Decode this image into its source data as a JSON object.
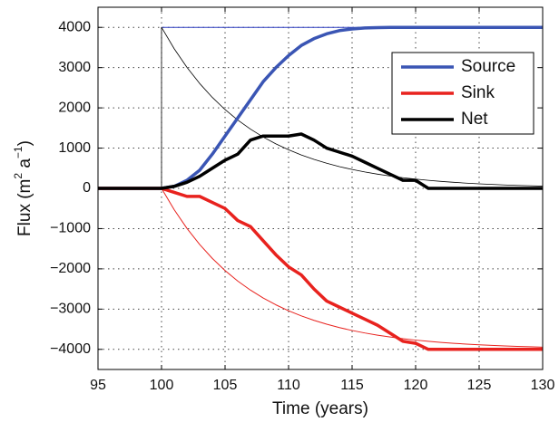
{
  "chart_data": {
    "type": "line",
    "xlabel": "Time (years)",
    "ylabel": [
      "Flux (m",
      "2",
      " a",
      "−1",
      ")"
    ],
    "xlim": [
      95,
      130
    ],
    "ylim": [
      -4500,
      4500
    ],
    "xticks": [
      95,
      100,
      105,
      110,
      115,
      120,
      125,
      130
    ],
    "yticks": [
      {
        "value": -4000,
        "label": "−4000"
      },
      {
        "value": -3000,
        "label": "−3000"
      },
      {
        "value": -2000,
        "label": "−2000"
      },
      {
        "value": -1000,
        "label": "−1000"
      },
      0,
      1000,
      2000,
      3000,
      4000
    ],
    "grid": true,
    "legend": "upper right",
    "x": [
      95,
      96,
      97,
      98,
      99,
      100,
      101,
      102,
      103,
      104,
      105,
      106,
      107,
      108,
      109,
      110,
      111,
      112,
      113,
      114,
      115,
      116,
      117,
      118,
      119,
      120,
      121,
      122,
      123,
      124,
      125,
      126,
      127,
      128,
      129,
      130
    ],
    "series": [
      {
        "color": "#2c3cc0",
        "width": 1,
        "x": [
          100,
          130
        ],
        "values": [
          4000,
          4000
        ]
      },
      {
        "color": "#000000",
        "width": 0.8,
        "x": [
          100,
          100,
          101,
          102,
          103,
          104,
          105,
          106,
          107,
          108,
          109,
          110,
          111,
          112,
          113,
          114,
          115,
          116,
          117,
          118,
          119,
          120,
          121,
          122,
          123,
          124,
          125,
          126,
          127,
          128,
          129,
          130
        ],
        "values": [
          0,
          4000,
          3468,
          3006,
          2606,
          2259,
          1958,
          1697,
          1472,
          1276,
          1106,
          959,
          831,
          720,
          625,
          541,
          469,
          407,
          353,
          306,
          265,
          230,
          199,
          173,
          150,
          130,
          112,
          98,
          84,
          73,
          64,
          55
        ]
      },
      {
        "color": "#e8221e",
        "width": 1,
        "x": [
          100,
          101,
          102,
          103,
          104,
          105,
          106,
          107,
          108,
          109,
          110,
          111,
          112,
          113,
          114,
          115,
          116,
          117,
          118,
          119,
          120,
          121,
          122,
          123,
          124,
          125,
          126,
          127,
          128,
          129,
          130
        ],
        "values": [
          0,
          -532,
          -994,
          -1394,
          -1741,
          -2042,
          -2303,
          -2528,
          -2724,
          -2894,
          -3041,
          -3169,
          -3280,
          -3375,
          -3459,
          -3531,
          -3593,
          -3647,
          -3694,
          -3735,
          -3770,
          -3801,
          -3827,
          -3850,
          -3870,
          -3888,
          -3902,
          -3916,
          -3927,
          -3936,
          -3945
        ]
      },
      {
        "name": "Source",
        "color": "#3a55b4",
        "width": 3.5,
        "values": [
          0,
          0,
          0,
          0,
          0,
          0,
          50,
          200,
          450,
          850,
          1300,
          1750,
          2200,
          2650,
          3000,
          3300,
          3550,
          3720,
          3840,
          3920,
          3960,
          3985,
          3995,
          4000,
          4000,
          4000,
          4000,
          4000,
          4000,
          4000,
          4000,
          4000,
          4000,
          4000,
          4000,
          4000
        ]
      },
      {
        "name": "Sink",
        "color": "#e8221e",
        "width": 3.5,
        "values": [
          0,
          0,
          0,
          0,
          0,
          0,
          -100,
          -200,
          -200,
          -350,
          -500,
          -800,
          -950,
          -1300,
          -1650,
          -1950,
          -2150,
          -2500,
          -2800,
          -2950,
          -3100,
          -3250,
          -3400,
          -3600,
          -3800,
          -3850,
          -4000,
          -4000,
          -4000,
          -4000,
          -4000,
          -4000,
          -4000,
          -4000,
          -4000,
          -4000
        ]
      },
      {
        "name": "Net",
        "color": "#000000",
        "width": 3.5,
        "values": [
          0,
          0,
          0,
          0,
          0,
          0,
          50,
          150,
          300,
          500,
          700,
          850,
          1200,
          1300,
          1300,
          1300,
          1350,
          1200,
          1000,
          900,
          800,
          650,
          500,
          350,
          200,
          200,
          0,
          0,
          0,
          0,
          0,
          0,
          0,
          0,
          0,
          0
        ]
      }
    ]
  }
}
